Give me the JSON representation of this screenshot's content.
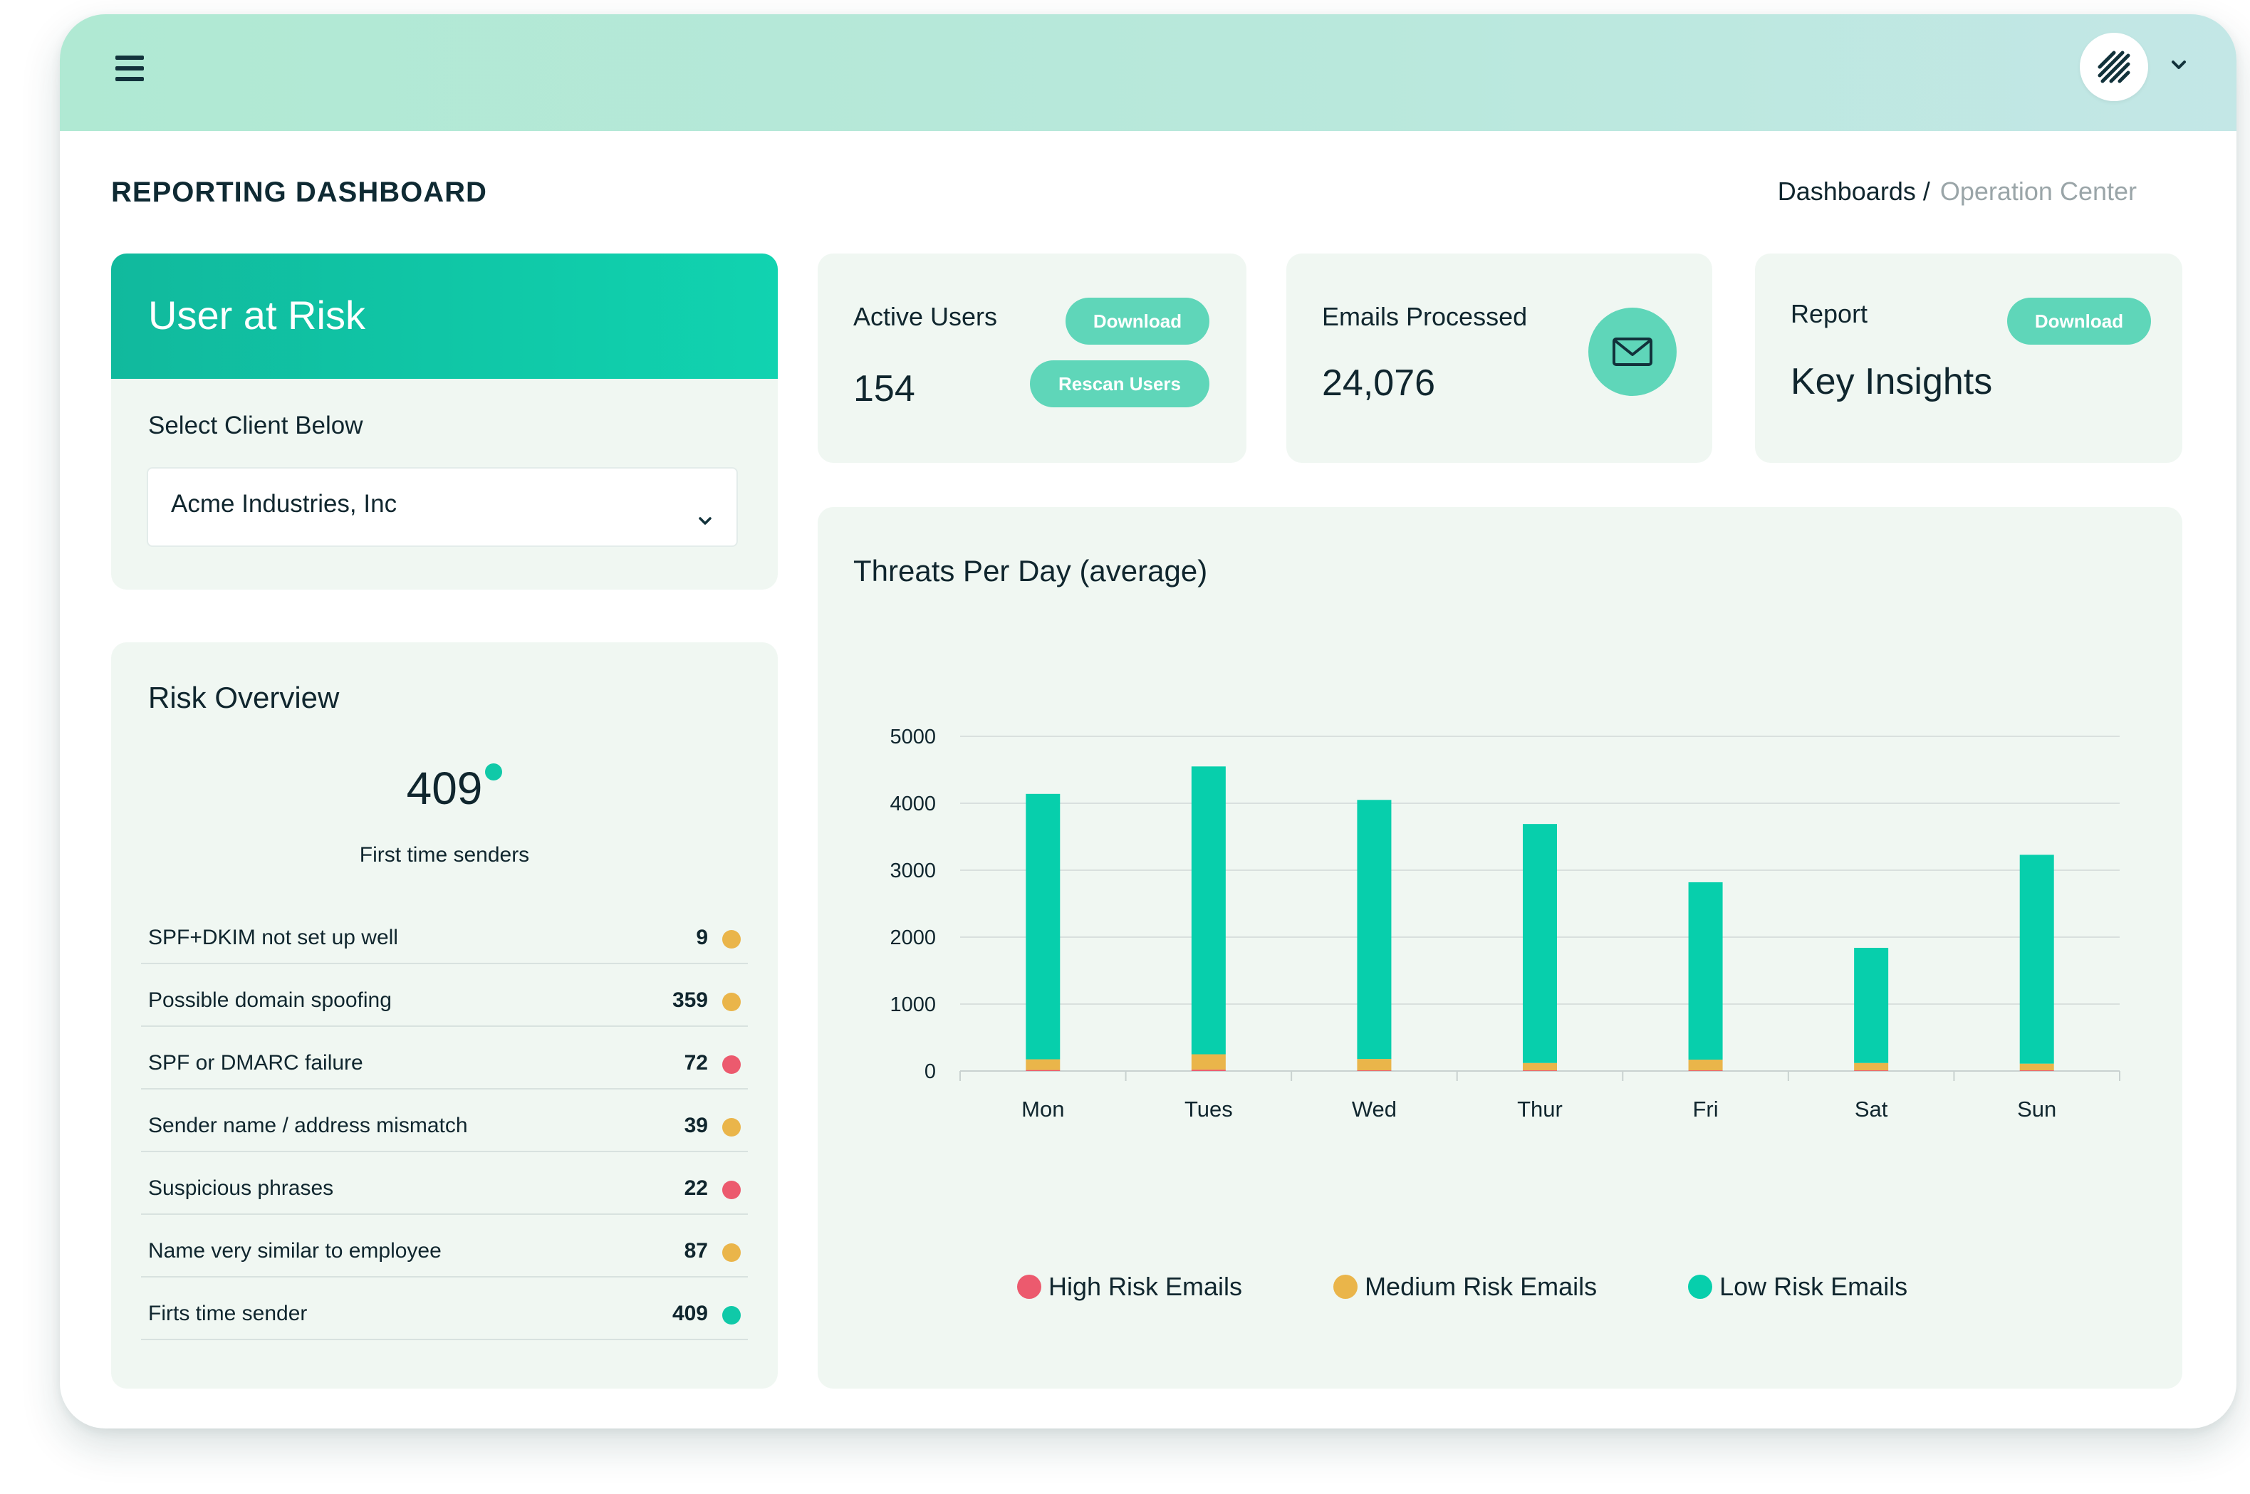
{
  "header": {
    "menu_icon": "hamburger-menu-icon",
    "logo_icon": "stripes-logo-icon",
    "account_chevron_icon": "chevron-down-icon"
  },
  "page": {
    "title": "REPORTING DASHBOARD",
    "breadcrumb": [
      "Dashboards /",
      "Operation Center"
    ]
  },
  "user_at_risk": {
    "title": "User at Risk",
    "select_label": "Select Client Below",
    "selected_client": "Acme Industries, Inc"
  },
  "risk_overview": {
    "title": "Risk Overview",
    "headline_value": "409",
    "headline_label": "First time senders",
    "items": [
      {
        "label": "SPF+DKIM not set up well",
        "value": "9",
        "color": "#eab54a"
      },
      {
        "label": "Possible domain spoofing",
        "value": "359",
        "color": "#eab54a"
      },
      {
        "label": "SPF or DMARC failure",
        "value": "72",
        "color": "#ec5a6e"
      },
      {
        "label": "Sender name / address mismatch",
        "value": "39",
        "color": "#eab54a"
      },
      {
        "label": "Suspicious phrases",
        "value": "22",
        "color": "#ec5a6e"
      },
      {
        "label": "Name very similar to employee",
        "value": "87",
        "color": "#eab54a"
      },
      {
        "label": "Firts time sender",
        "value": "409",
        "color": "#10c9a8"
      }
    ]
  },
  "stats": {
    "active_users": {
      "label": "Active Users",
      "value": "154",
      "download_label": "Download",
      "rescan_label": "Rescan Users"
    },
    "emails_processed": {
      "label": "Emails Processed",
      "value": "24,076",
      "icon": "mail-icon"
    },
    "report": {
      "label": "Report",
      "value": "Key Insights",
      "download_label": "Download"
    }
  },
  "colors": {
    "accent": "#10c9a8",
    "high_risk": "#ec5a6e",
    "medium_risk": "#eab54a",
    "low_risk": "#07cfac",
    "card_bg": "#f0f7f2"
  },
  "chart_data": {
    "type": "bar",
    "stacked": true,
    "title": "Threats Per Day (average)",
    "categories": [
      "Mon",
      "Tues",
      "Wed",
      "Thur",
      "Fri",
      "Sat",
      "Sun"
    ],
    "ylim": [
      0,
      5000
    ],
    "yticks": [
      "0",
      "1000",
      "2000",
      "3000",
      "4000",
      "5000"
    ],
    "grid": true,
    "legend_position": "bottom",
    "series": [
      {
        "name": "High Risk Emails",
        "color": "#ec5a6e",
        "values": [
          15,
          20,
          10,
          10,
          10,
          10,
          10
        ]
      },
      {
        "name": "Medium Risk Emails",
        "color": "#eab54a",
        "values": [
          160,
          230,
          170,
          110,
          160,
          110,
          100
        ]
      },
      {
        "name": "Low Risk Emails",
        "color": "#07cfac",
        "values": [
          3965,
          4300,
          3870,
          3570,
          2650,
          1720,
          3120
        ]
      }
    ]
  }
}
